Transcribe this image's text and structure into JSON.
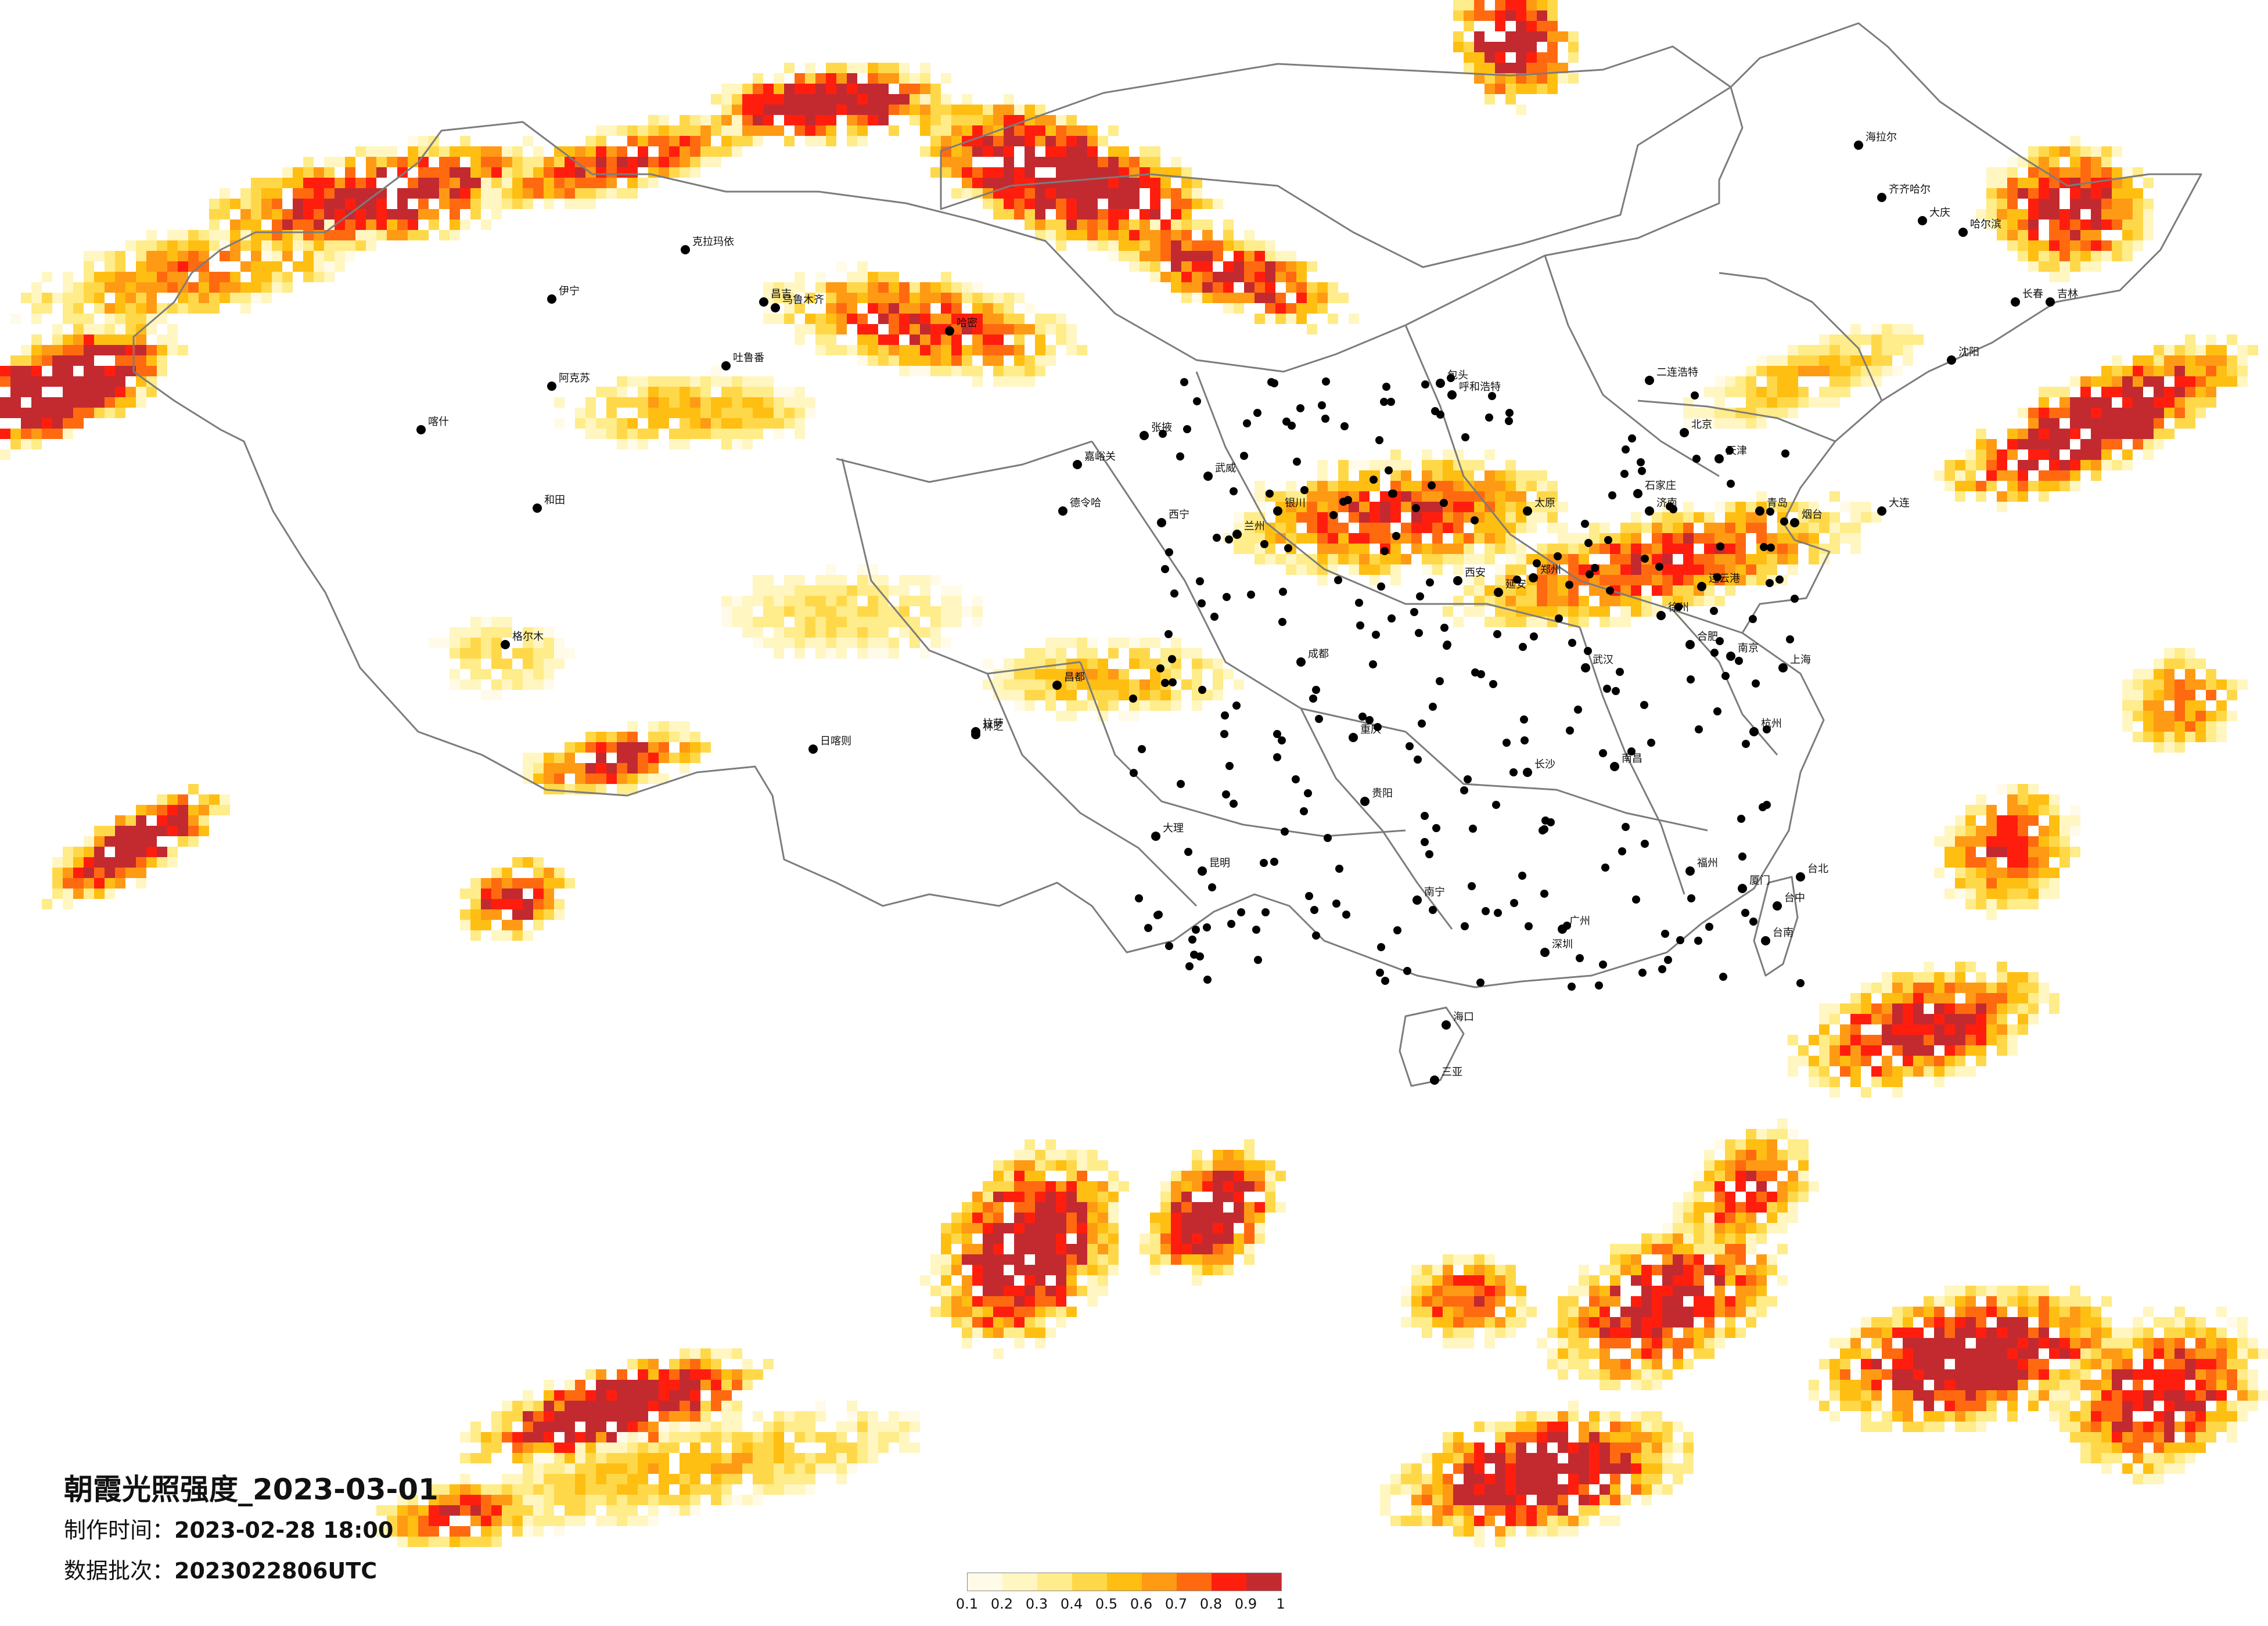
{
  "header": {
    "title": "朝霞光照强度_2023-03-01",
    "made_label": "制作时间：",
    "made_value": "2023-02-28 18:00",
    "batch_label": "数据批次：",
    "batch_value": "2023022806UTC"
  },
  "legend": {
    "ticks": [
      "0.1",
      "0.2",
      "0.3",
      "0.4",
      "0.5",
      "0.6",
      "0.7",
      "0.8",
      "0.9",
      "1"
    ],
    "colors": [
      "#fffbe8",
      "#fff6c2",
      "#ffec8a",
      "#ffd84a",
      "#ffbe12",
      "#ff9a14",
      "#ff6a10",
      "#ff1e0e",
      "#c22a30"
    ]
  },
  "boundary_color": "#7c7c7c",
  "city_marker_color": "#000000",
  "cities": [
    {
      "name": "克拉玛依"
    },
    {
      "name": "昌吉"
    },
    {
      "name": "乌鲁木齐"
    },
    {
      "name": "哈密"
    },
    {
      "name": "吐鲁番"
    },
    {
      "name": "伊宁"
    },
    {
      "name": "阿克苏"
    },
    {
      "name": "喀什"
    },
    {
      "name": "和田"
    },
    {
      "name": "格尔木"
    },
    {
      "name": "德令哈"
    },
    {
      "name": "嘉峪关"
    },
    {
      "name": "张掖"
    },
    {
      "name": "武威"
    },
    {
      "name": "西宁"
    },
    {
      "name": "兰州"
    },
    {
      "name": "银川"
    },
    {
      "name": "呼和浩特"
    },
    {
      "name": "包头"
    },
    {
      "name": "二连浩特"
    },
    {
      "name": "海拉尔"
    },
    {
      "name": "齐齐哈尔"
    },
    {
      "name": "大庆"
    },
    {
      "name": "哈尔滨"
    },
    {
      "name": "长春"
    },
    {
      "name": "吉林"
    },
    {
      "name": "沈阳"
    },
    {
      "name": "大连"
    },
    {
      "name": "北京"
    },
    {
      "name": "天津"
    },
    {
      "name": "石家庄"
    },
    {
      "name": "太原"
    },
    {
      "name": "济南"
    },
    {
      "name": "青岛"
    },
    {
      "name": "郑州"
    },
    {
      "name": "西安"
    },
    {
      "name": "延安"
    },
    {
      "name": "拉萨"
    },
    {
      "name": "日喀则"
    },
    {
      "name": "林芝"
    },
    {
      "name": "昌都"
    },
    {
      "name": "成都"
    },
    {
      "name": "重庆"
    },
    {
      "name": "贵阳"
    },
    {
      "name": "昆明"
    },
    {
      "name": "大理"
    },
    {
      "name": "南宁"
    },
    {
      "name": "广州"
    },
    {
      "name": "深圳"
    },
    {
      "name": "长沙"
    },
    {
      "name": "武汉"
    },
    {
      "name": "南昌"
    },
    {
      "name": "合肥"
    },
    {
      "name": "南京"
    },
    {
      "name": "上海"
    },
    {
      "name": "杭州"
    },
    {
      "name": "福州"
    },
    {
      "name": "厦门"
    },
    {
      "name": "台北"
    },
    {
      "name": "台中"
    },
    {
      "name": "台南"
    },
    {
      "name": "海口"
    },
    {
      "name": "三亚"
    },
    {
      "name": "徐州"
    },
    {
      "name": "连云港"
    },
    {
      "name": "烟台"
    }
  ]
}
